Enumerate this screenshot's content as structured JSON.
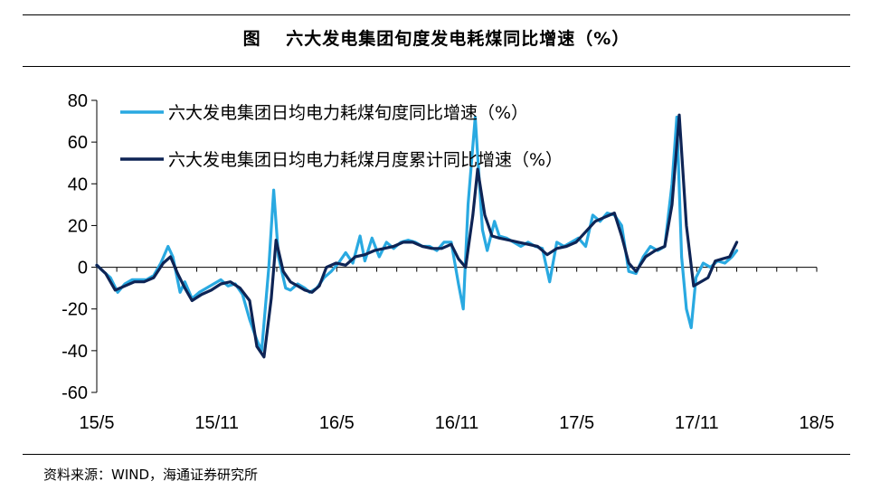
{
  "header": {
    "title": "图　 六大发电集团旬度发电耗煤同比增速（%）"
  },
  "footer": {
    "source": "资料来源：WIND，海通证券研究所"
  },
  "chart_data": {
    "type": "line",
    "title": "图　 六大发电集团旬度发电耗煤同比增速（%）",
    "xlabel": "",
    "ylabel": "",
    "x_tick_labels": [
      "15/5",
      "15/11",
      "16/5",
      "16/11",
      "17/5",
      "17/11",
      "18/5"
    ],
    "y_tick_labels": [
      "80",
      "60",
      "40",
      "20",
      "0",
      "-20",
      "-40",
      "-60"
    ],
    "ylim": [
      -60,
      80
    ],
    "xlim": [
      2015.333,
      2018.333
    ],
    "grid": false,
    "legend_position": "top-left",
    "series": [
      {
        "name": "六大发电集团日均电力耗煤旬度同比增速（%）",
        "color": "#29a9e1",
        "points": [
          [
            2015.333,
            1
          ],
          [
            2015.36,
            -2
          ],
          [
            2015.39,
            -5
          ],
          [
            2015.42,
            -12
          ],
          [
            2015.45,
            -8
          ],
          [
            2015.48,
            -6
          ],
          [
            2015.51,
            -6
          ],
          [
            2015.54,
            -6
          ],
          [
            2015.57,
            -4
          ],
          [
            2015.6,
            2
          ],
          [
            2015.63,
            10
          ],
          [
            2015.65,
            5
          ],
          [
            2015.68,
            -12
          ],
          [
            2015.7,
            -7
          ],
          [
            2015.73,
            -15
          ],
          [
            2015.76,
            -12
          ],
          [
            2015.79,
            -10
          ],
          [
            2015.82,
            -8
          ],
          [
            2015.85,
            -6
          ],
          [
            2015.88,
            -9
          ],
          [
            2015.91,
            -8
          ],
          [
            2015.94,
            -13
          ],
          [
            2015.97,
            -25
          ],
          [
            2016.0,
            -35
          ],
          [
            2016.02,
            -40
          ],
          [
            2016.05,
            0
          ],
          [
            2016.07,
            37
          ],
          [
            2016.09,
            5
          ],
          [
            2016.12,
            -10
          ],
          [
            2016.14,
            -11
          ],
          [
            2016.17,
            -8
          ],
          [
            2016.2,
            -10
          ],
          [
            2016.22,
            -12
          ],
          [
            2016.25,
            -10
          ],
          [
            2016.28,
            -5
          ],
          [
            2016.31,
            -2
          ],
          [
            2016.34,
            2
          ],
          [
            2016.37,
            7
          ],
          [
            2016.4,
            2
          ],
          [
            2016.43,
            15
          ],
          [
            2016.45,
            3
          ],
          [
            2016.48,
            14
          ],
          [
            2016.51,
            5
          ],
          [
            2016.54,
            12
          ],
          [
            2016.57,
            9
          ],
          [
            2016.6,
            12
          ],
          [
            2016.63,
            13
          ],
          [
            2016.66,
            12
          ],
          [
            2016.69,
            10
          ],
          [
            2016.72,
            10
          ],
          [
            2016.75,
            8
          ],
          [
            2016.78,
            12
          ],
          [
            2016.81,
            12
          ],
          [
            2016.84,
            -8
          ],
          [
            2016.86,
            -20
          ],
          [
            2016.88,
            30
          ],
          [
            2016.91,
            72
          ],
          [
            2016.94,
            18
          ],
          [
            2016.96,
            8
          ],
          [
            2016.99,
            22
          ],
          [
            2017.01,
            15
          ],
          [
            2017.04,
            14
          ],
          [
            2017.07,
            12
          ],
          [
            2017.1,
            10
          ],
          [
            2017.13,
            12
          ],
          [
            2017.16,
            10
          ],
          [
            2017.19,
            9
          ],
          [
            2017.22,
            -7
          ],
          [
            2017.25,
            12
          ],
          [
            2017.28,
            10
          ],
          [
            2017.31,
            12
          ],
          [
            2017.34,
            14
          ],
          [
            2017.37,
            10
          ],
          [
            2017.4,
            25
          ],
          [
            2017.43,
            22
          ],
          [
            2017.46,
            26
          ],
          [
            2017.49,
            25
          ],
          [
            2017.52,
            20
          ],
          [
            2017.55,
            -2
          ],
          [
            2017.58,
            -3
          ],
          [
            2017.61,
            5
          ],
          [
            2017.64,
            10
          ],
          [
            2017.67,
            8
          ],
          [
            2017.7,
            10
          ],
          [
            2017.73,
            40
          ],
          [
            2017.75,
            72
          ],
          [
            2017.77,
            5
          ],
          [
            2017.79,
            -20
          ],
          [
            2017.81,
            -29
          ],
          [
            2017.83,
            -5
          ],
          [
            2017.86,
            2
          ],
          [
            2017.89,
            0
          ],
          [
            2017.92,
            3
          ],
          [
            2017.95,
            2
          ],
          [
            2017.98,
            5
          ],
          [
            2018.0,
            8
          ]
        ]
      },
      {
        "name": "六大发电集团日均电力耗煤月度累计同比增速（%）",
        "color": "#0e2455",
        "points": [
          [
            2015.333,
            1
          ],
          [
            2015.37,
            -3
          ],
          [
            2015.41,
            -11
          ],
          [
            2015.45,
            -9
          ],
          [
            2015.49,
            -7
          ],
          [
            2015.53,
            -7
          ],
          [
            2015.57,
            -5
          ],
          [
            2015.61,
            2
          ],
          [
            2015.64,
            5
          ],
          [
            2015.67,
            -3
          ],
          [
            2015.7,
            -10
          ],
          [
            2015.73,
            -16
          ],
          [
            2015.77,
            -13
          ],
          [
            2015.81,
            -11
          ],
          [
            2015.85,
            -8
          ],
          [
            2015.89,
            -7
          ],
          [
            2015.93,
            -10
          ],
          [
            2015.97,
            -16
          ],
          [
            2016.0,
            -38
          ],
          [
            2016.03,
            -43
          ],
          [
            2016.06,
            -15
          ],
          [
            2016.08,
            13
          ],
          [
            2016.11,
            -2
          ],
          [
            2016.14,
            -7
          ],
          [
            2016.17,
            -9
          ],
          [
            2016.2,
            -11
          ],
          [
            2016.23,
            -12
          ],
          [
            2016.26,
            -9
          ],
          [
            2016.29,
            0
          ],
          [
            2016.33,
            2
          ],
          [
            2016.37,
            1
          ],
          [
            2016.41,
            5
          ],
          [
            2016.45,
            6
          ],
          [
            2016.49,
            8
          ],
          [
            2016.53,
            9
          ],
          [
            2016.57,
            10
          ],
          [
            2016.61,
            12
          ],
          [
            2016.65,
            12
          ],
          [
            2016.69,
            10
          ],
          [
            2016.73,
            9
          ],
          [
            2016.77,
            9
          ],
          [
            2016.81,
            11
          ],
          [
            2016.84,
            4
          ],
          [
            2016.87,
            0
          ],
          [
            2016.9,
            25
          ],
          [
            2016.92,
            47
          ],
          [
            2016.95,
            25
          ],
          [
            2016.98,
            15
          ],
          [
            2017.01,
            14
          ],
          [
            2017.05,
            13
          ],
          [
            2017.09,
            12
          ],
          [
            2017.13,
            11
          ],
          [
            2017.17,
            10
          ],
          [
            2017.21,
            6
          ],
          [
            2017.25,
            9
          ],
          [
            2017.29,
            10
          ],
          [
            2017.33,
            12
          ],
          [
            2017.37,
            17
          ],
          [
            2017.41,
            22
          ],
          [
            2017.45,
            24
          ],
          [
            2017.49,
            26
          ],
          [
            2017.52,
            15
          ],
          [
            2017.55,
            2
          ],
          [
            2017.58,
            -2
          ],
          [
            2017.62,
            5
          ],
          [
            2017.66,
            8
          ],
          [
            2017.7,
            10
          ],
          [
            2017.73,
            30
          ],
          [
            2017.76,
            73
          ],
          [
            2017.79,
            20
          ],
          [
            2017.82,
            -9
          ],
          [
            2017.85,
            -7
          ],
          [
            2017.88,
            -5
          ],
          [
            2017.91,
            3
          ],
          [
            2017.94,
            4
          ],
          [
            2017.97,
            5
          ],
          [
            2018.0,
            12
          ]
        ]
      }
    ]
  }
}
